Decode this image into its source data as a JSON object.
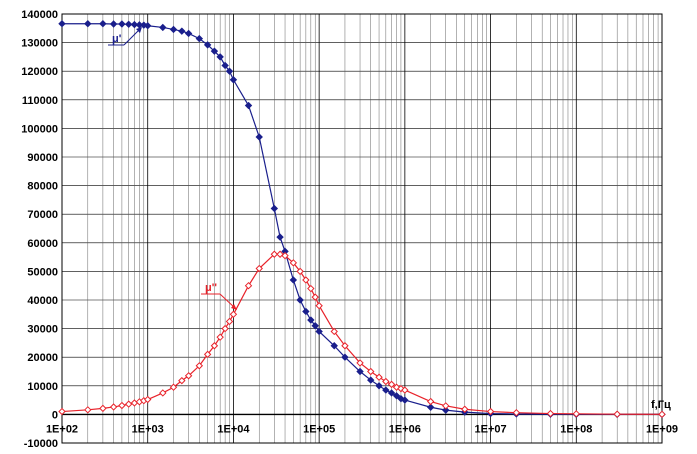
{
  "chart_data": {
    "type": "line",
    "title": "",
    "xlabel": "f,Гц",
    "ylabel": "",
    "x_scale": "log",
    "xlim": [
      100,
      1000000000
    ],
    "ylim": [
      -10000,
      140000
    ],
    "grid": true,
    "x_ticks": [
      "1E+02",
      "1E+03",
      "1E+04",
      "1E+05",
      "1E+06",
      "1E+07",
      "1E+08",
      "1E+09"
    ],
    "y_ticks": [
      "-10000",
      "0",
      "10000",
      "20000",
      "30000",
      "40000",
      "50000",
      "60000",
      "70000",
      "80000",
      "90000",
      "100000",
      "110000",
      "120000",
      "130000",
      "140000"
    ],
    "series": [
      {
        "name": "μ'",
        "color": "#1a1f8c",
        "marker": "filled-diamond",
        "x": [
          100,
          200,
          300,
          400,
          500,
          600,
          700,
          800,
          900,
          1000,
          1500,
          2000,
          2500,
          3000,
          4000,
          5000,
          6000,
          7000,
          8000,
          9000,
          10000,
          15000,
          20000,
          30000,
          35000,
          40000,
          50000,
          60000,
          70000,
          80000,
          90000,
          100000,
          150000,
          200000,
          300000,
          400000,
          500000,
          600000,
          700000,
          800000,
          900000,
          1000000,
          2000000,
          3000000,
          5000000,
          10000000,
          20000000,
          50000000,
          100000000,
          300000000,
          1000000000
        ],
        "y": [
          136600,
          136600,
          136600,
          136500,
          136500,
          136400,
          136300,
          136200,
          136100,
          135900,
          135300,
          134600,
          134000,
          133200,
          131400,
          129200,
          127000,
          125000,
          122000,
          120000,
          117000,
          108000,
          97000,
          72000,
          62000,
          57000,
          47000,
          40000,
          36000,
          33000,
          31000,
          29000,
          24000,
          20000,
          15000,
          12000,
          10000,
          8500,
          7500,
          6500,
          5500,
          5000,
          2500,
          1500,
          800,
          300,
          150,
          60,
          30,
          10,
          0
        ]
      },
      {
        "name": "μ''",
        "color": "#e8222a",
        "marker": "open-diamond",
        "x": [
          100,
          200,
          300,
          400,
          500,
          600,
          700,
          800,
          900,
          1000,
          1500,
          2000,
          2500,
          3000,
          4000,
          5000,
          6000,
          7000,
          8000,
          9000,
          10000,
          15000,
          20000,
          30000,
          35000,
          40000,
          50000,
          60000,
          70000,
          80000,
          90000,
          100000,
          150000,
          200000,
          300000,
          400000,
          500000,
          600000,
          700000,
          800000,
          900000,
          1000000,
          2000000,
          3000000,
          5000000,
          10000000,
          20000000,
          50000000,
          100000000,
          300000000,
          1000000000
        ],
        "y": [
          1000,
          1600,
          2100,
          2600,
          3100,
          3600,
          4000,
          4400,
          4800,
          5200,
          7500,
          9500,
          11800,
          13500,
          17000,
          21000,
          24000,
          27000,
          30000,
          32500,
          35000,
          45000,
          51000,
          56000,
          56000,
          55500,
          53000,
          50000,
          47000,
          44000,
          41000,
          38000,
          29000,
          24000,
          18000,
          15000,
          13000,
          11500,
          10500,
          9500,
          9000,
          8500,
          4500,
          3000,
          1800,
          1000,
          600,
          300,
          200,
          80,
          30
        ]
      }
    ],
    "annotations": [
      "μ'",
      "μ''"
    ]
  }
}
